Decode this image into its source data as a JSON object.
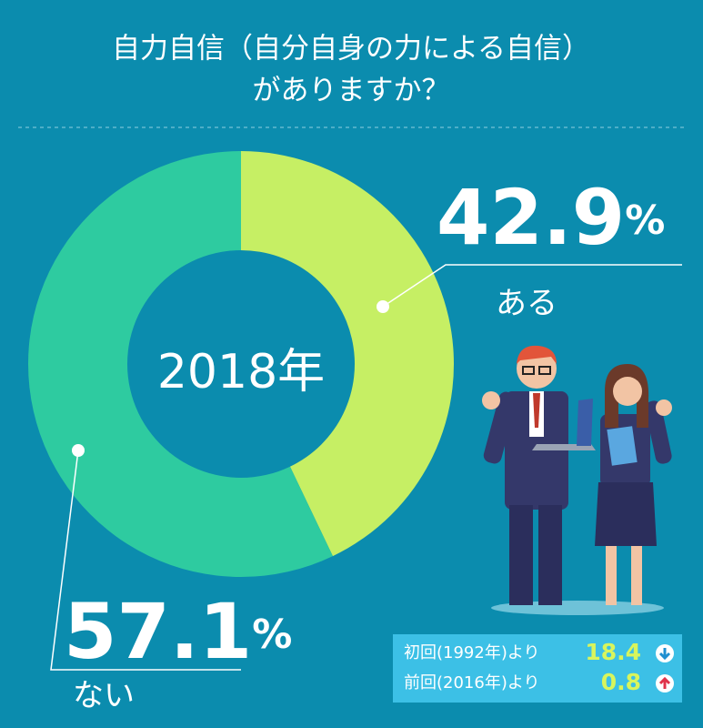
{
  "chart_data": {
    "type": "pie",
    "title": [
      "自力自信（自分自身の力による自信）",
      "がありますか？"
    ],
    "center_label": "2018年",
    "categories": [
      "ある",
      "ない"
    ],
    "values": [
      42.9,
      57.1
    ],
    "unit": "%",
    "colors": [
      "#c6ef64",
      "#2ecba0"
    ],
    "comparisons": [
      {
        "label": "初回(1992年)より",
        "value": 18.4,
        "direction": "down"
      },
      {
        "label": "前回(2016年)より",
        "value": 0.8,
        "direction": "up"
      }
    ]
  }
}
